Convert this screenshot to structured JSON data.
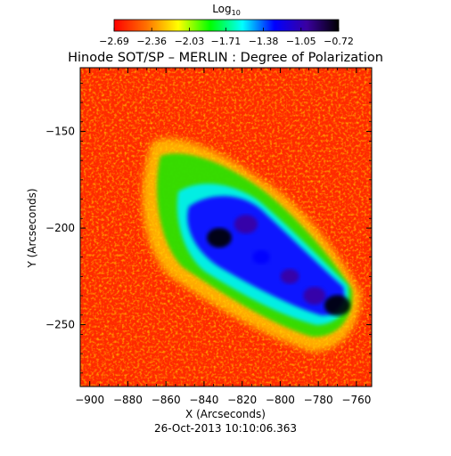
{
  "chart_data": {
    "type": "heatmap",
    "title": "Hinode SOT/SP – MERLIN : Degree of Polarization",
    "subtitle": "26-Oct-2013 10:10:06.363",
    "xlabel": "X (Arcseconds)",
    "ylabel": "Y (Arcseconds)",
    "xlim": [
      -905,
      -752
    ],
    "ylim": [
      -282,
      -117
    ],
    "xticks": [
      -900,
      -880,
      -860,
      -840,
      -820,
      -800,
      -780,
      -760
    ],
    "yticks": [
      -150,
      -200,
      -250
    ],
    "xtick_labels": [
      "−900",
      "−880",
      "−860",
      "−840",
      "−820",
      "−800",
      "−780",
      "−760"
    ],
    "ytick_labels": [
      "−150",
      "−200",
      "−250"
    ],
    "colorbar": {
      "label": "Log",
      "label_sub": "10",
      "range": [
        -2.69,
        -0.72
      ],
      "ticks": [
        -2.69,
        -2.36,
        -2.03,
        -1.71,
        -1.38,
        -1.05,
        -0.72
      ],
      "tick_labels": [
        "−2.69",
        "−2.36",
        "−2.03",
        "−1.71",
        "−1.38",
        "−1.05",
        "−0.72"
      ],
      "colormap": [
        "#ff0000",
        "#ff7000",
        "#ffff00",
        "#00ff00",
        "#00ffff",
        "#0000ff",
        "#3a00a0",
        "#000000"
      ]
    },
    "features": [
      {
        "x": -832,
        "y": -205,
        "value": -0.85
      },
      {
        "x": -818,
        "y": -198,
        "value": -0.9
      },
      {
        "x": -810,
        "y": -215,
        "value": -1.15
      },
      {
        "x": -795,
        "y": -225,
        "value": -1.1
      },
      {
        "x": -782,
        "y": -235,
        "value": -0.95
      },
      {
        "x": -770,
        "y": -240,
        "value": -0.8
      }
    ]
  }
}
